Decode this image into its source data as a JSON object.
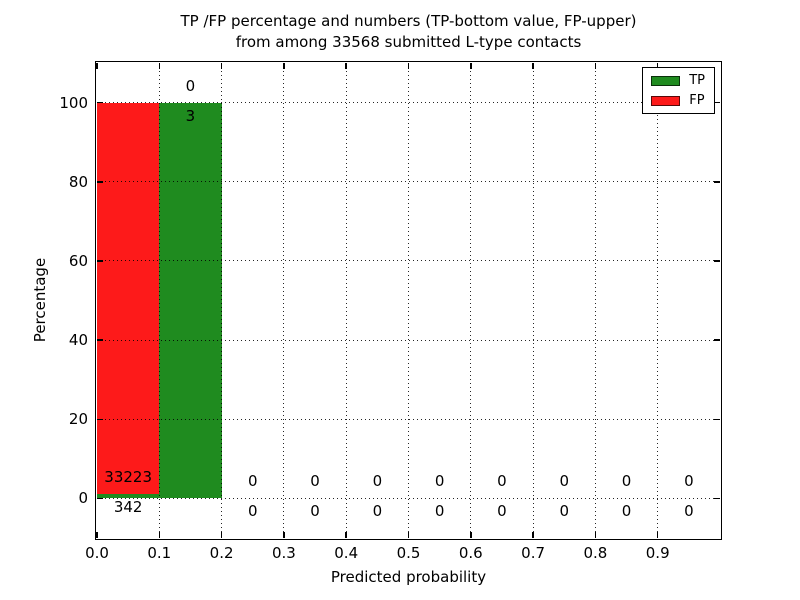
{
  "chart_data": {
    "type": "bar",
    "stacked": true,
    "title_line1": "TP /FP percentage and numbers (TP-bottom value, FP-upper)",
    "title_line2": "from among 33568 submitted L-type contacts",
    "xlabel": "Predicted probability",
    "ylabel": "Percentage",
    "xlim": [
      0.0,
      1.0
    ],
    "ylim": [
      -10,
      110
    ],
    "xticks": [
      "0.0",
      "0.1",
      "0.2",
      "0.3",
      "0.4",
      "0.5",
      "0.6",
      "0.7",
      "0.8",
      "0.9"
    ],
    "yticks": [
      "0",
      "20",
      "40",
      "60",
      "80",
      "100"
    ],
    "grid": "dotted-over-bars",
    "colors": {
      "tp": "#1f8b1f",
      "fp": "#fd1a1a"
    },
    "legend": {
      "position": "upper-right",
      "entries": [
        {
          "label": "TP",
          "color": "#1f8b1f"
        },
        {
          "label": "FP",
          "color": "#fd1a1a"
        }
      ]
    },
    "bins": [
      {
        "range": [
          0.0,
          0.1
        ],
        "tp_count": "342",
        "fp_count": "33223",
        "tp_pct": 1.02,
        "fp_pct": 98.98
      },
      {
        "range": [
          0.1,
          0.2
        ],
        "tp_count": "3",
        "fp_count": "0",
        "tp_pct": 100,
        "fp_pct": 0
      },
      {
        "range": [
          0.2,
          0.3
        ],
        "tp_count": "0",
        "fp_count": "0",
        "tp_pct": 0,
        "fp_pct": 0
      },
      {
        "range": [
          0.3,
          0.4
        ],
        "tp_count": "0",
        "fp_count": "0",
        "tp_pct": 0,
        "fp_pct": 0
      },
      {
        "range": [
          0.4,
          0.5
        ],
        "tp_count": "0",
        "fp_count": "0",
        "tp_pct": 0,
        "fp_pct": 0
      },
      {
        "range": [
          0.5,
          0.6
        ],
        "tp_count": "0",
        "fp_count": "0",
        "tp_pct": 0,
        "fp_pct": 0
      },
      {
        "range": [
          0.6,
          0.7
        ],
        "tp_count": "0",
        "fp_count": "0",
        "tp_pct": 0,
        "fp_pct": 0
      },
      {
        "range": [
          0.7,
          0.8
        ],
        "tp_count": "0",
        "fp_count": "0",
        "tp_pct": 0,
        "fp_pct": 0
      },
      {
        "range": [
          0.8,
          0.9
        ],
        "tp_count": "0",
        "fp_count": "0",
        "tp_pct": 0,
        "fp_pct": 0
      },
      {
        "range": [
          0.9,
          1.0
        ],
        "tp_count": "0",
        "fp_count": "0",
        "tp_pct": 0,
        "fp_pct": 0
      }
    ]
  }
}
